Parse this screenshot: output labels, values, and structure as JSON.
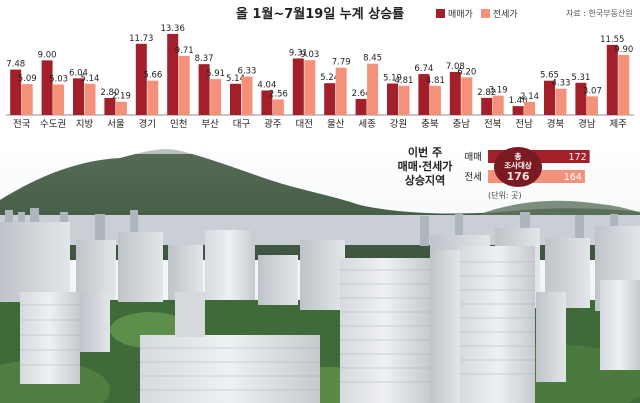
{
  "header": {
    "title": "올 1월~7월19일 누계 상승률",
    "source": "자료 : 한국부동산원"
  },
  "colors": {
    "sale": "#a3202b",
    "jeonse": "#f4917a",
    "bg": "#ffffff"
  },
  "chart_data": [
    {
      "type": "bar",
      "title": "올 1월~7월19일 누계 상승률",
      "categories": [
        "전국",
        "수도권",
        "지방",
        "서울",
        "경기",
        "인천",
        "부산",
        "대구",
        "광주",
        "대전",
        "울산",
        "세종",
        "강원",
        "충북",
        "충남",
        "전북",
        "전남",
        "경북",
        "경남",
        "제주"
      ],
      "series": [
        {
          "name": "매매가",
          "values": [
            7.48,
            9.0,
            6.04,
            2.8,
            11.73,
            13.36,
            8.37,
            5.14,
            4.04,
            9.31,
            5.24,
            2.64,
            5.19,
            6.74,
            7.08,
            2.82,
            1.46,
            5.65,
            5.31,
            11.55
          ]
        },
        {
          "name": "전세가",
          "values": [
            5.09,
            5.03,
            5.14,
            2.19,
            5.66,
            9.71,
            5.91,
            6.33,
            2.56,
            9.03,
            7.79,
            8.45,
            4.81,
            4.81,
            6.2,
            3.19,
            2.14,
            4.33,
            3.07,
            9.9
          ]
        }
      ],
      "value_labels": {
        "sale": [
          "7.48",
          "9.00",
          "6.04",
          "2.80",
          "11.73",
          "13.36",
          "8.37",
          "5.14",
          "4.04",
          "9.31",
          "5.24",
          "2.64",
          "5.19",
          "6.74",
          "7.08",
          "2.82",
          "1.46",
          "5.65",
          "5.31",
          "11.55"
        ],
        "jeonse": [
          "5.09",
          "5.03",
          "5.14",
          "2.19",
          "5.66",
          "9.71",
          "5.91",
          "6.33",
          "2.56",
          "9.03",
          "7.79",
          "8.45",
          "4.81",
          "4.81",
          "6.20",
          "3.19",
          "2.14",
          "4.33",
          "3.07",
          "9.90"
        ]
      },
      "ylim": [
        0,
        14
      ],
      "legend": "top-right",
      "grid": false
    },
    {
      "type": "bar",
      "title": "이번 주 매매·전세가 상승지역",
      "title_lines": [
        "이번 주",
        "매매·전세가",
        "상승지역"
      ],
      "categories": [
        "매매",
        "전세"
      ],
      "total_label": "총 조사대상",
      "total": 176,
      "values": [
        172,
        164
      ],
      "value_labels": [
        "172",
        "164"
      ],
      "unit": "(단위: 곳)"
    }
  ]
}
